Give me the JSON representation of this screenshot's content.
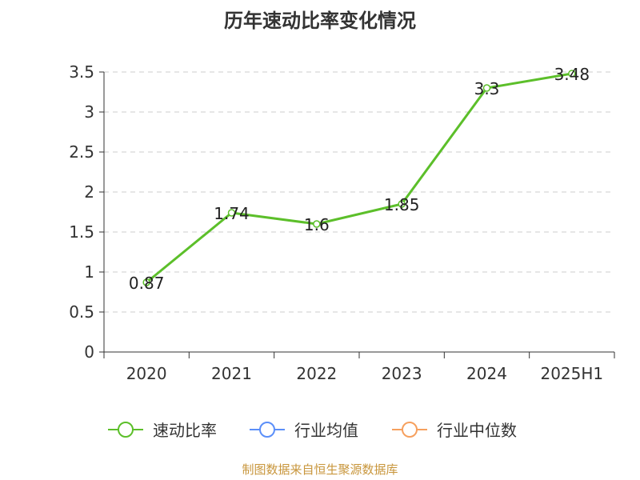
{
  "title": "历年速动比率变化情况",
  "source": "制图数据来自恒生聚源数据库",
  "colors": {
    "series": "#5cbf2a",
    "industry_avg": "#5b8ff9",
    "industry_median": "#f6a05e",
    "grid": "#cccccc",
    "axis": "#333333"
  },
  "legend": [
    {
      "label": "速动比率",
      "color": "#5cbf2a"
    },
    {
      "label": "行业均值",
      "color": "#5b8ff9"
    },
    {
      "label": "行业中位数",
      "color": "#f6a05e"
    }
  ],
  "chart_data": {
    "type": "line",
    "title": "历年速动比率变化情况",
    "categories": [
      "2020",
      "2021",
      "2022",
      "2023",
      "2024",
      "2025H1"
    ],
    "series": [
      {
        "name": "速动比率",
        "values": [
          0.87,
          1.74,
          1.6,
          1.85,
          3.3,
          3.48
        ]
      }
    ],
    "data_labels": [
      "0.87",
      "1.74",
      "1.6",
      "1.85",
      "3.3",
      "3.48"
    ],
    "y_ticks": [
      "0",
      "0.5",
      "1",
      "1.5",
      "2",
      "2.5",
      "3",
      "3.5"
    ],
    "ylim": [
      0,
      3.5
    ],
    "grid": true,
    "legend_position": "bottom"
  }
}
